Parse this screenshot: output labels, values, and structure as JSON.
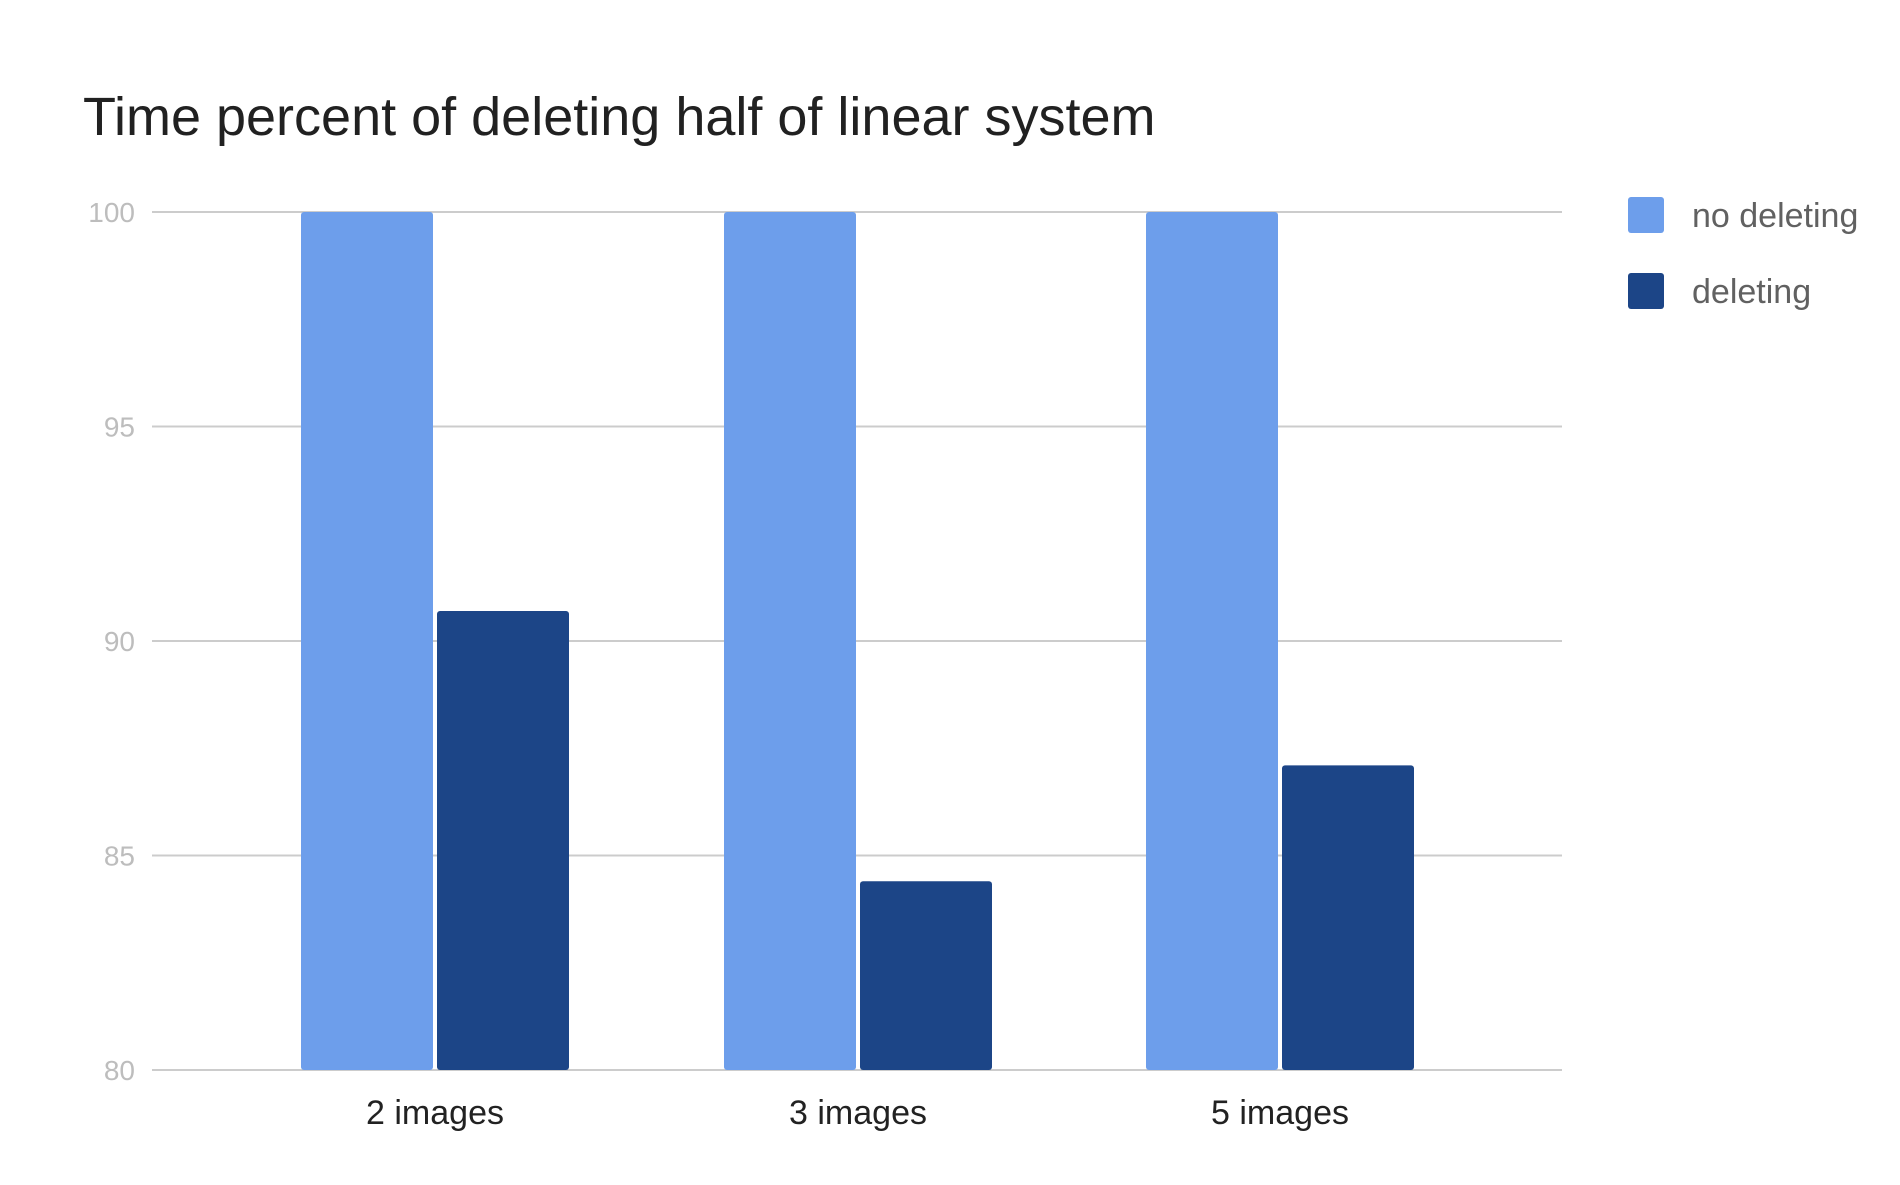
{
  "chart_data": {
    "type": "bar",
    "title": "Time percent of deleting half of linear system",
    "xlabel": "",
    "ylabel": "",
    "categories": [
      "2 images",
      "3 images",
      "5 images"
    ],
    "series": [
      {
        "name": "no deleting",
        "color": "#6d9eeb",
        "values": [
          100,
          100,
          100
        ]
      },
      {
        "name": "deleting",
        "color": "#1c4587",
        "values": [
          90.7,
          84.4,
          87.1
        ]
      }
    ],
    "ylim": [
      80,
      100
    ],
    "yticks": [
      80,
      85,
      90,
      95,
      100
    ],
    "grid": true,
    "legend_position": "right"
  }
}
